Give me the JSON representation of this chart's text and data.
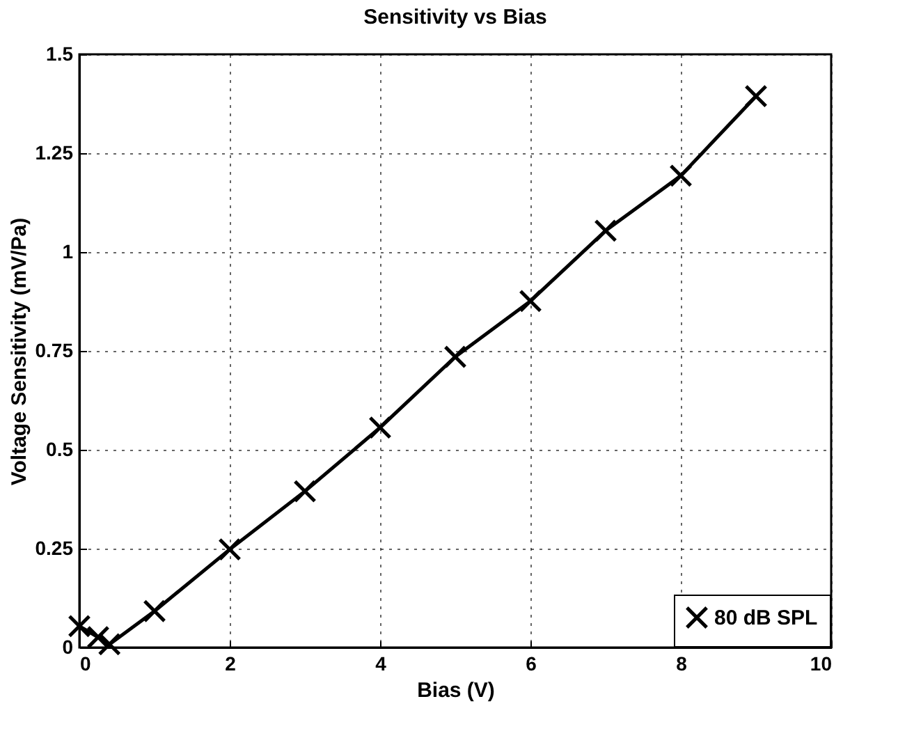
{
  "chart_data": {
    "type": "line",
    "title": "Sensitivity vs Bias",
    "xlabel": "Bias (V)",
    "ylabel": "Voltage Sensitivity (mV/Pa)",
    "x": [
      0,
      0.25,
      0.4,
      1,
      2,
      3,
      4,
      5,
      6,
      7,
      8,
      9
    ],
    "series": [
      {
        "name": "80 dB SPL",
        "color": "#000000",
        "values": [
          0.054,
          0.026,
          0.008,
          0.092,
          0.248,
          0.395,
          0.556,
          0.735,
          0.876,
          1.054,
          1.193,
          1.394
        ]
      }
    ],
    "xlim": [
      0,
      10
    ],
    "xticks": [
      0,
      2,
      4,
      6,
      8,
      10
    ],
    "ylim": [
      0,
      1.5
    ],
    "yticks": [
      0,
      0.25,
      0.5,
      0.75,
      1,
      1.25,
      1.5
    ],
    "grid": true,
    "legend": "bottom right",
    "marker": "cross",
    "line_style": "solid"
  }
}
